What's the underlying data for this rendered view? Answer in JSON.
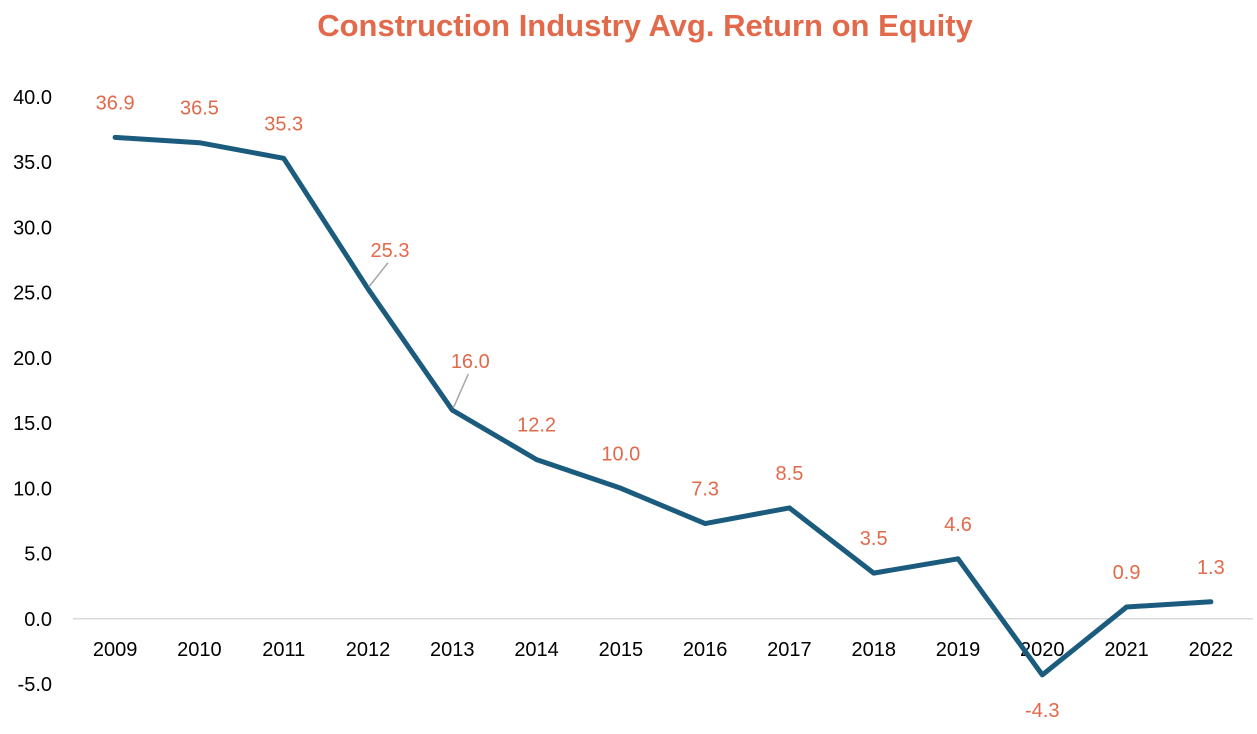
{
  "chart_data": {
    "type": "line",
    "title": "Construction Industry Avg. Return on Equity",
    "xlabel": "",
    "ylabel": "",
    "categories": [
      "2009",
      "2010",
      "2011",
      "2012",
      "2013",
      "2014",
      "2015",
      "2016",
      "2017",
      "2018",
      "2019",
      "2020",
      "2021",
      "2022"
    ],
    "series": [
      {
        "values": [
          36.9,
          36.5,
          35.3,
          25.3,
          16.0,
          12.2,
          10.0,
          7.3,
          8.5,
          3.5,
          4.6,
          -4.3,
          0.9,
          1.3
        ],
        "labels": [
          "36.9",
          "36.5",
          "35.3",
          "25.3",
          "16.0",
          "12.2",
          "10.0",
          "7.3",
          "8.5",
          "3.5",
          "4.6",
          "-4.3",
          "0.9",
          "1.3"
        ]
      }
    ],
    "ylim": [
      -5,
      40
    ],
    "yticks": [
      "-5.0",
      "0.0",
      "5.0",
      "10.0",
      "15.0",
      "20.0",
      "25.0",
      "30.0",
      "35.0",
      "40.0"
    ],
    "grid": false,
    "legend": "none",
    "colors": {
      "line": "#1B5C7E",
      "labels": "#E2694A",
      "title": "#E2694A",
      "axis": "#D9D9D9",
      "leader": "#A6A6A6"
    }
  }
}
